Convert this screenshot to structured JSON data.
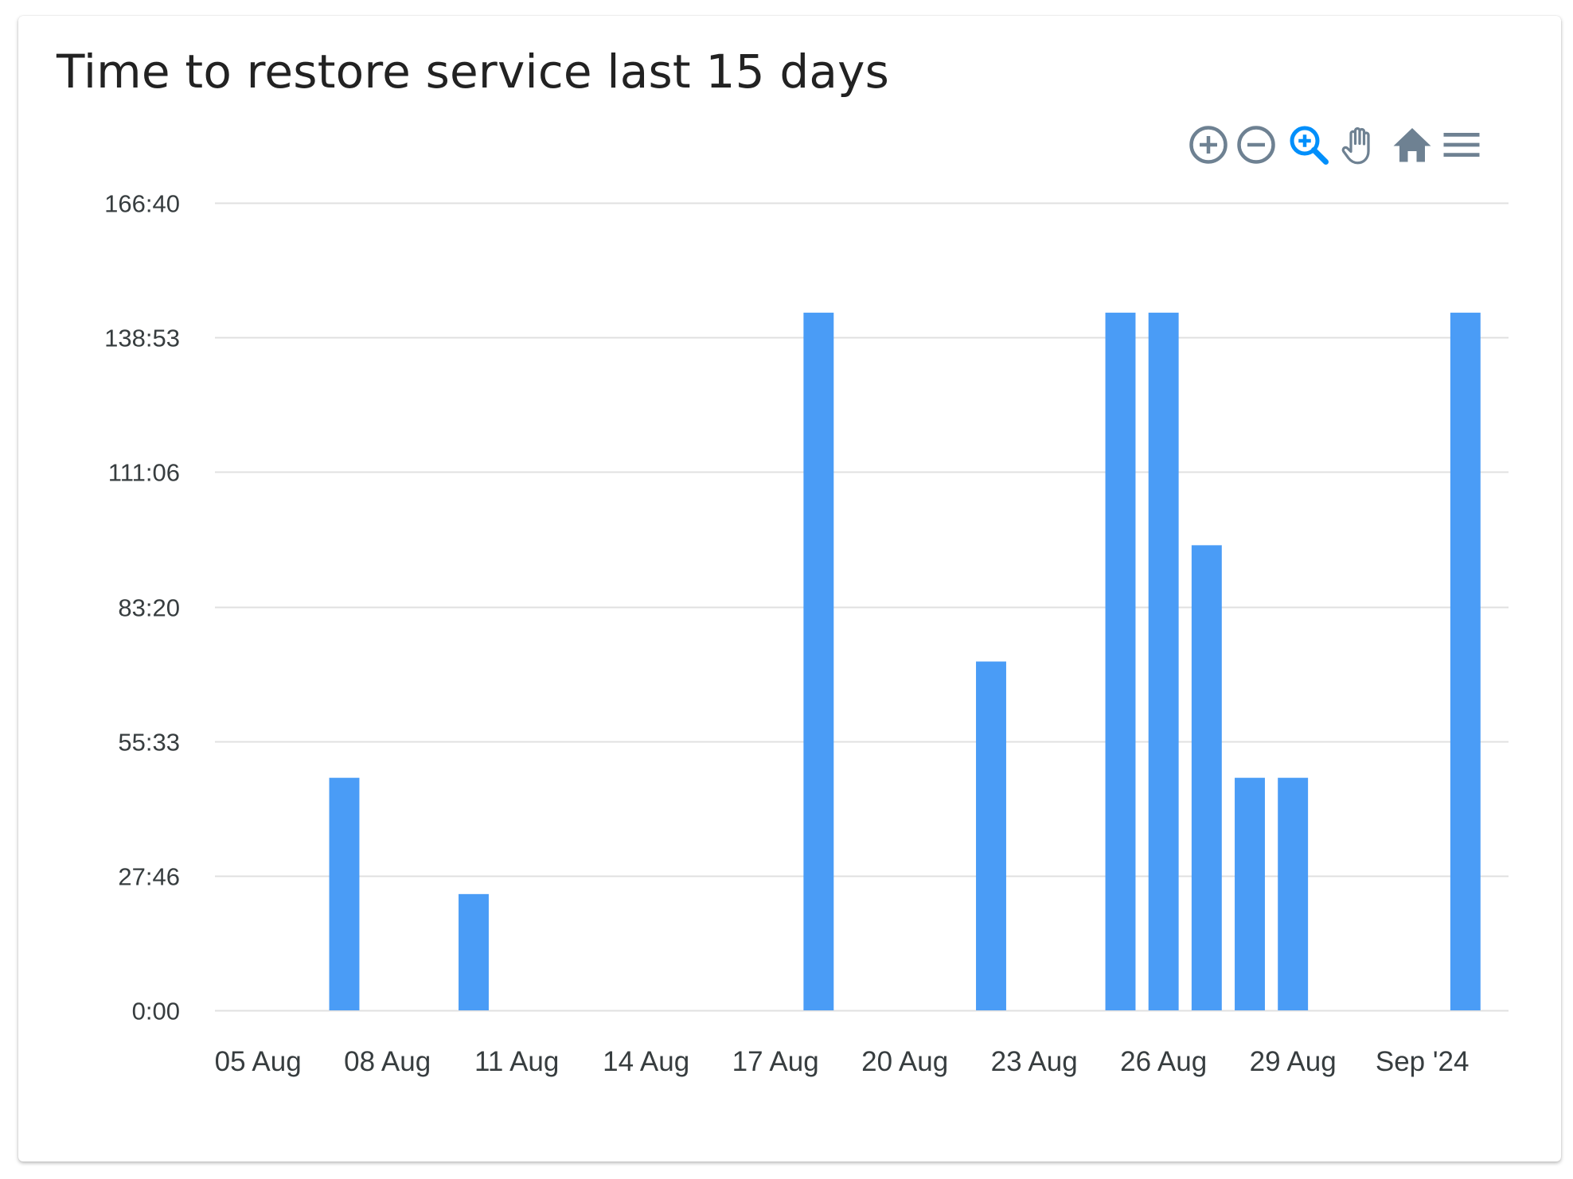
{
  "card": {
    "title": "Time to restore service last 15 days"
  },
  "toolbar": {
    "items": [
      {
        "name": "zoom-in",
        "icon": "plus-circle-icon"
      },
      {
        "name": "zoom-out",
        "icon": "minus-circle-icon"
      },
      {
        "name": "selection-zoom",
        "icon": "magnifier-plus-icon",
        "active": true
      },
      {
        "name": "pan",
        "icon": "hand-icon"
      },
      {
        "name": "reset",
        "icon": "home-icon"
      },
      {
        "name": "menu",
        "icon": "hamburger-menu-icon"
      }
    ]
  },
  "colors": {
    "bar": "#4a9cf6",
    "grid": "#e0e0e0",
    "tick_text": "#373d3f",
    "icon": "#6e8192",
    "icon_active": "#008ffb"
  },
  "chart_data": {
    "type": "bar",
    "title": "Time to restore service last 15 days",
    "xlabel": "",
    "ylabel": "",
    "x_unit": "date",
    "y_unit": "minutes (h:mm)",
    "ylim": [
      0,
      10000
    ],
    "y_ticks": [
      {
        "value": 0,
        "label": "0:00"
      },
      {
        "value": 1666.67,
        "label": "27:46"
      },
      {
        "value": 3333.33,
        "label": "55:33"
      },
      {
        "value": 5000,
        "label": "83:20"
      },
      {
        "value": 6666.67,
        "label": "111:06"
      },
      {
        "value": 8333.33,
        "label": "138:53"
      },
      {
        "value": 10000,
        "label": "166:40"
      }
    ],
    "xlim": [
      "2024-08-04",
      "2024-09-03"
    ],
    "x_ticks": [
      {
        "date": "2024-08-05",
        "label": "05 Aug"
      },
      {
        "date": "2024-08-08",
        "label": "08 Aug"
      },
      {
        "date": "2024-08-11",
        "label": "11 Aug"
      },
      {
        "date": "2024-08-14",
        "label": "14 Aug"
      },
      {
        "date": "2024-08-17",
        "label": "17 Aug"
      },
      {
        "date": "2024-08-20",
        "label": "20 Aug"
      },
      {
        "date": "2024-08-23",
        "label": "23 Aug"
      },
      {
        "date": "2024-08-26",
        "label": "26 Aug"
      },
      {
        "date": "2024-08-29",
        "label": "29 Aug"
      },
      {
        "date": "2024-09-01",
        "label": "Sep '24"
      }
    ],
    "series": [
      {
        "points": [
          {
            "date": "2024-08-07",
            "value": 2880
          },
          {
            "date": "2024-08-10",
            "value": 1440
          },
          {
            "date": "2024-08-18",
            "value": 8640
          },
          {
            "date": "2024-08-22",
            "value": 4320
          },
          {
            "date": "2024-08-25",
            "value": 8640
          },
          {
            "date": "2024-08-26",
            "value": 8640
          },
          {
            "date": "2024-08-27",
            "value": 5760
          },
          {
            "date": "2024-08-28",
            "value": 2880
          },
          {
            "date": "2024-08-29",
            "value": 2880
          },
          {
            "date": "2024-09-02",
            "value": 8640
          }
        ]
      }
    ],
    "grid": true,
    "legend": "none"
  }
}
